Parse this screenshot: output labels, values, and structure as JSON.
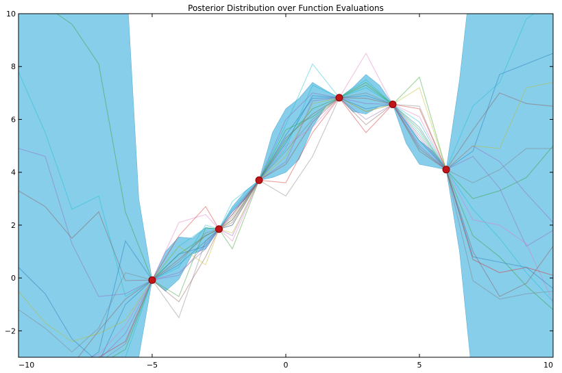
{
  "chart_data": {
    "type": "line",
    "title": "Posterior Distribution over Function Evaluations",
    "xlabel": "",
    "ylabel": "",
    "xlim": [
      -10,
      10
    ],
    "ylim": [
      -3,
      10
    ],
    "x_ticks": [
      -10,
      -5,
      0,
      5,
      10
    ],
    "y_ticks": [
      -2,
      0,
      2,
      4,
      6,
      8,
      10
    ],
    "grid": false,
    "colors": {
      "band": "#87ceeb",
      "band_edge": "#5fb0d6",
      "observation_fill": "#c0161a",
      "observation_edge": "#8b0000"
    },
    "observations": {
      "x": [
        -5,
        -2.5,
        -1,
        2,
        4,
        6
      ],
      "y": [
        -0.08,
        1.85,
        3.7,
        6.82,
        6.57,
        4.1
      ]
    },
    "credible_band": {
      "x": [
        -10,
        -9,
        -8,
        -7,
        -6,
        -5.5,
        -5,
        -4.5,
        -4,
        -3.5,
        -3,
        -2.5,
        -2,
        -1.5,
        -1,
        -0.5,
        0,
        0.5,
        1,
        1.5,
        2,
        2.5,
        3,
        3.5,
        4,
        4.5,
        5,
        5.5,
        6,
        6.5,
        7,
        7.5,
        8,
        9,
        10
      ],
      "upper": [
        12,
        12,
        12,
        12,
        12,
        3.0,
        -0.08,
        1.0,
        1.55,
        1.5,
        1.9,
        1.85,
        2.7,
        3.3,
        3.7,
        5.5,
        6.4,
        6.8,
        7.4,
        7.1,
        6.82,
        7.2,
        7.7,
        7.3,
        6.57,
        5.9,
        5.2,
        4.8,
        4.1,
        7.5,
        12,
        12,
        12,
        12,
        12
      ],
      "lower": [
        -4,
        -4,
        -4,
        -4,
        -4,
        -3.0,
        -0.08,
        -0.5,
        -0.05,
        0.9,
        1.1,
        1.85,
        2.5,
        3.0,
        3.7,
        3.8,
        4.0,
        4.5,
        5.7,
        6.5,
        6.82,
        6.3,
        6.2,
        6.5,
        6.57,
        5.1,
        4.3,
        4.2,
        4.1,
        1.0,
        -4,
        -4,
        -4,
        -4,
        -4
      ]
    },
    "samples": {
      "x": [
        -10,
        -9,
        -8,
        -7,
        -6,
        -5,
        -4,
        -3,
        -2.5,
        -2,
        -1,
        0,
        1,
        2,
        3,
        4,
        5,
        6,
        7,
        8,
        9,
        10
      ],
      "series": [
        {
          "color": "#1f77b4",
          "values": [
            0.4,
            -0.6,
            -2.3,
            -3.2,
            -1.0,
            -0.08,
            0.5,
            1.4,
            1.85,
            2.4,
            3.7,
            5.4,
            6.8,
            6.82,
            6.9,
            6.57,
            5.2,
            4.1,
            4.8,
            7.7,
            8.1,
            8.5
          ]
        },
        {
          "color": "#2ca02c",
          "values": [
            10.8,
            10.3,
            9.6,
            8.1,
            2.5,
            -0.08,
            0.9,
            1.6,
            1.85,
            2.2,
            3.7,
            5.2,
            6.4,
            6.82,
            7.3,
            6.57,
            5.6,
            4.1,
            3.0,
            3.3,
            3.8,
            5.0
          ]
        },
        {
          "color": "#9467bd",
          "values": [
            4.9,
            4.6,
            1.3,
            -0.7,
            -0.6,
            -0.08,
            0.2,
            1.1,
            1.85,
            1.6,
            3.7,
            6.0,
            7.0,
            6.82,
            6.6,
            6.57,
            5.0,
            4.1,
            4.6,
            3.4,
            1.2,
            1.8
          ]
        },
        {
          "color": "#17becf",
          "values": [
            7.8,
            5.5,
            2.6,
            3.1,
            -0.7,
            -0.08,
            1.2,
            1.9,
            1.85,
            2.6,
            3.7,
            5.8,
            8.1,
            6.82,
            7.5,
            6.57,
            5.9,
            4.1,
            6.5,
            7.4,
            9.8,
            10.5
          ]
        },
        {
          "color": "#8c564b",
          "values": [
            3.3,
            2.7,
            1.5,
            2.5,
            -0.1,
            -0.08,
            -0.9,
            0.8,
            1.85,
            2.1,
            3.7,
            4.3,
            5.9,
            6.82,
            5.8,
            6.57,
            4.9,
            4.1,
            5.6,
            7.0,
            6.6,
            6.5
          ]
        },
        {
          "color": "#7f7f7f",
          "values": [
            -1.2,
            -1.9,
            -2.8,
            -1.9,
            0.2,
            -0.08,
            -1.5,
            1.4,
            1.85,
            2.3,
            3.7,
            3.1,
            4.6,
            6.82,
            6.3,
            6.57,
            6.5,
            4.1,
            -0.1,
            -0.8,
            -0.6,
            -0.5
          ]
        },
        {
          "color": "#bcbd22",
          "values": [
            -0.5,
            -1.7,
            -2.4,
            -2.1,
            -1.6,
            -0.08,
            1.2,
            0.5,
            1.85,
            1.7,
            3.7,
            4.6,
            6.6,
            6.82,
            6.3,
            6.57,
            7.2,
            4.1,
            5.0,
            4.9,
            7.2,
            7.4
          ]
        },
        {
          "color": "#e377c2",
          "values": [
            -3.5,
            -3.4,
            -3.2,
            -2.9,
            -1.8,
            -0.08,
            2.1,
            2.4,
            1.85,
            1.4,
            3.7,
            5.0,
            5.7,
            6.82,
            8.5,
            6.57,
            6.1,
            4.1,
            2.2,
            2.0,
            1.3,
            -0.9
          ]
        },
        {
          "color": "#d62728",
          "values": [
            -3.4,
            -3.3,
            -3.2,
            -3.0,
            -2.4,
            -0.08,
            1.6,
            2.7,
            1.85,
            2.4,
            3.7,
            3.6,
            5.5,
            6.82,
            5.5,
            6.57,
            6.4,
            4.1,
            0.7,
            0.2,
            0.4,
            0.1
          ]
        },
        {
          "color": "#2ca02c",
          "values": [
            -4.0,
            -3.5,
            -3.1,
            -3.3,
            -2.7,
            -0.08,
            -0.7,
            1.9,
            1.85,
            1.1,
            3.7,
            5.6,
            6.1,
            6.82,
            7.4,
            6.57,
            7.6,
            4.1,
            1.6,
            0.8,
            -0.3,
            -1.2
          ]
        },
        {
          "color": "#1f77b4",
          "values": [
            -3.8,
            -3.6,
            -3.5,
            -2.8,
            1.4,
            -0.08,
            0.9,
            1.2,
            1.85,
            2.0,
            3.7,
            5.1,
            6.9,
            6.82,
            6.4,
            6.57,
            5.7,
            4.1,
            0.8,
            0.6,
            0.4,
            -0.4
          ]
        },
        {
          "color": "#17becf",
          "values": [
            -4.0,
            -3.8,
            -3.6,
            -3.4,
            -3.0,
            -0.08,
            0.4,
            2.0,
            1.85,
            2.9,
            3.7,
            4.9,
            7.3,
            6.82,
            7.2,
            6.57,
            5.5,
            4.1,
            2.6,
            1.5,
            0.2,
            -0.9
          ]
        },
        {
          "color": "#8c564b",
          "values": [
            -3.6,
            -3.5,
            -3.3,
            -2.0,
            -0.8,
            -0.08,
            0.7,
            1.6,
            1.85,
            2.2,
            3.7,
            5.3,
            6.2,
            6.82,
            6.8,
            6.57,
            4.8,
            4.1,
            1.0,
            -0.7,
            -0.2,
            1.2
          ]
        },
        {
          "color": "#9467bd",
          "values": [
            -3.9,
            -3.7,
            -3.4,
            -3.1,
            -2.1,
            -0.08,
            0.1,
            1.3,
            1.85,
            2.5,
            3.7,
            4.4,
            6.7,
            6.82,
            6.0,
            6.57,
            5.3,
            4.1,
            5.0,
            4.4,
            3.2,
            2.1
          ]
        },
        {
          "color": "#7f7f7f",
          "values": [
            -3.7,
            -3.6,
            -3.5,
            -3.2,
            -2.5,
            -0.08,
            0.6,
            1.7,
            1.85,
            2.0,
            3.7,
            4.8,
            6.0,
            6.82,
            7.0,
            6.57,
            5.4,
            4.1,
            3.6,
            4.1,
            4.9,
            4.9
          ]
        }
      ]
    }
  }
}
